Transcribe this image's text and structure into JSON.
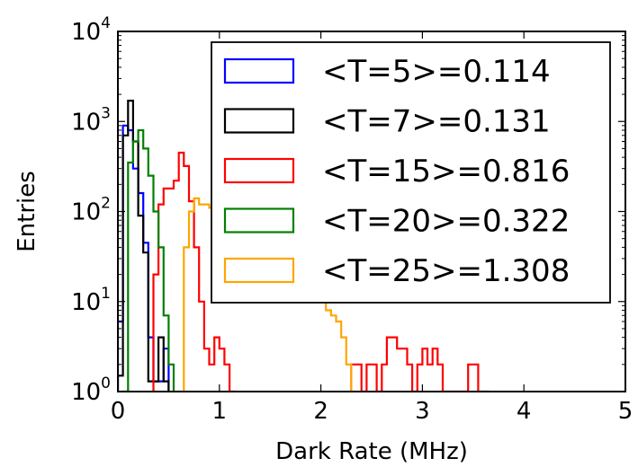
{
  "chart_data": {
    "type": "histogram",
    "xlabel": "Dark Rate (MHz)",
    "ylabel": "Entries",
    "xlim": [
      0,
      5
    ],
    "ylim": [
      1,
      10000
    ],
    "yscale": "log",
    "x_ticks": [
      0,
      1,
      2,
      3,
      4,
      5
    ],
    "y_ticks": [
      {
        "value": 1,
        "base": "10",
        "exp": "0"
      },
      {
        "value": 10,
        "base": "10",
        "exp": "1"
      },
      {
        "value": 100,
        "base": "10",
        "exp": "2"
      },
      {
        "value": 1000,
        "base": "10",
        "exp": "3"
      },
      {
        "value": 10000,
        "base": "10",
        "exp": "4"
      }
    ],
    "legend_position": "top-right",
    "series": [
      {
        "name": "<T=5>=0.114",
        "color": "#0000ff",
        "edges": [
          0,
          0.05,
          0.1,
          0.15,
          0.2,
          0.25,
          0.3,
          0.35,
          0.4,
          0.45,
          0.5
        ],
        "counts": [
          6,
          900,
          800,
          300,
          160,
          45,
          4,
          1.3,
          1.3,
          3
        ]
      },
      {
        "name": "<T=7>=0.131",
        "color": "#000000",
        "edges": [
          0,
          0.05,
          0.1,
          0.15,
          0.2,
          0.25,
          0.3,
          0.35,
          0.4,
          0.45,
          0.5
        ],
        "counts": [
          1.5,
          700,
          1700,
          600,
          90,
          35,
          1.3,
          1.3,
          4,
          1.3
        ]
      },
      {
        "name": "<T=15>=0.816",
        "color": "#ff0000",
        "edges": [
          0.35,
          0.4,
          0.45,
          0.5,
          0.55,
          0.6,
          0.65,
          0.7,
          0.75,
          0.8,
          0.85,
          0.9,
          0.95,
          1.0,
          1.05,
          1.1,
          1.15,
          2.3,
          2.35,
          2.4,
          2.45,
          2.5,
          2.55,
          2.6,
          2.65,
          2.7,
          2.75,
          2.8,
          2.85,
          2.9,
          2.95,
          3.0,
          3.05,
          3.1,
          3.15,
          3.2,
          3.25,
          3.3,
          3.35,
          3.4,
          3.45,
          3.5,
          3.55,
          3.6,
          3.65
        ],
        "counts": [
          20,
          120,
          180,
          180,
          220,
          450,
          320,
          130,
          40,
          10,
          3,
          2,
          4,
          3,
          2,
          1,
          0,
          2,
          2,
          1,
          2,
          2,
          1,
          2,
          4,
          4,
          3,
          3,
          2,
          1,
          2,
          3,
          2,
          3,
          2,
          1,
          1,
          1,
          1,
          1,
          2,
          2,
          1,
          1
        ]
      },
      {
        "name": "<T=20>=0.322",
        "color": "#008000",
        "edges": [
          0.05,
          0.1,
          0.15,
          0.2,
          0.25,
          0.3,
          0.35,
          0.4,
          0.45,
          0.5,
          0.55
        ],
        "counts": [
          1,
          350,
          600,
          800,
          500,
          250,
          100,
          40,
          7,
          2
        ]
      },
      {
        "name": "<T=25>=1.308",
        "color": "#ffa500",
        "edges": [
          0.6,
          0.65,
          0.7,
          0.75,
          0.8,
          0.85,
          0.9,
          0.95,
          1.0,
          1.05,
          1.1,
          1.15,
          1.2,
          1.25,
          1.3,
          1.35,
          1.4,
          1.45,
          1.5,
          1.55,
          1.6,
          1.65,
          1.7,
          1.75,
          1.8,
          1.85,
          1.9,
          1.95,
          2.0,
          2.05,
          2.1,
          2.15,
          2.2,
          2.25,
          2.3,
          2.35
        ],
        "counts": [
          1,
          40,
          100,
          140,
          120,
          120,
          110,
          130,
          120,
          110,
          100,
          90,
          80,
          75,
          70,
          60,
          55,
          50,
          45,
          40,
          35,
          30,
          25,
          22,
          20,
          16,
          14,
          12,
          10,
          8,
          7,
          6,
          4,
          2,
          1
        ]
      }
    ]
  }
}
